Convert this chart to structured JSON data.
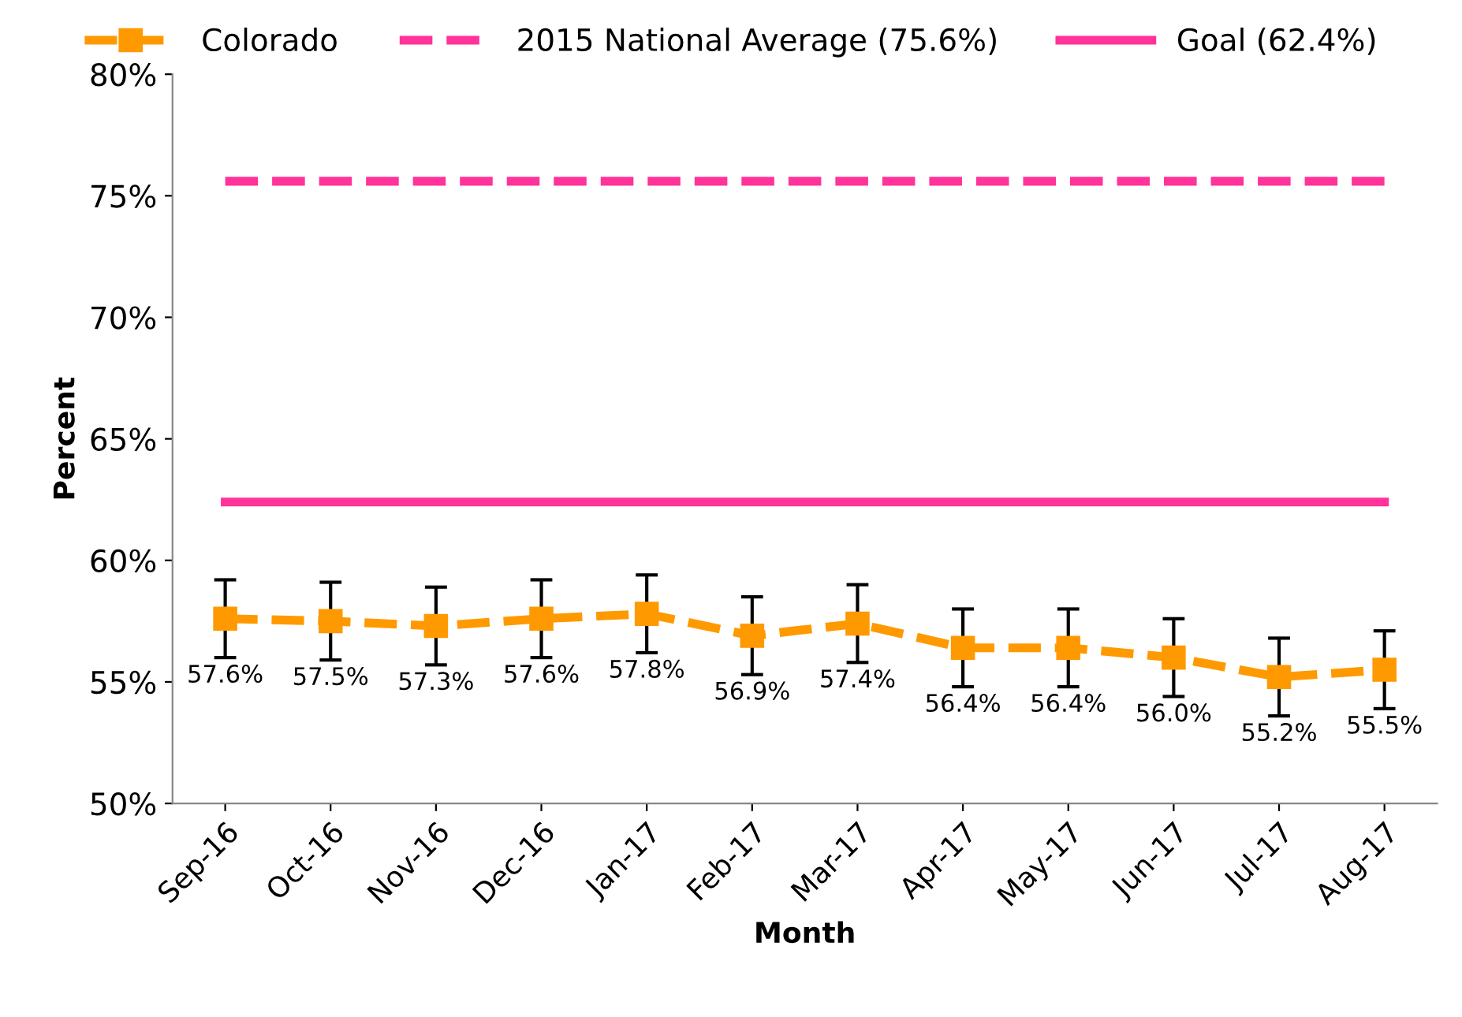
{
  "chart_data": {
    "type": "line",
    "xlabel": "Month",
    "ylabel": "Percent",
    "categories": [
      "Sep-16",
      "Oct-16",
      "Nov-16",
      "Dec-16",
      "Jan-17",
      "Feb-17",
      "Mar-17",
      "Apr-17",
      "May-17",
      "Jun-17",
      "Jul-17",
      "Aug-17"
    ],
    "series": [
      {
        "name": "Colorado",
        "color": "#ff9900",
        "marker": "square",
        "line_style": "dashed",
        "values": [
          57.6,
          57.5,
          57.3,
          57.6,
          57.8,
          56.9,
          57.4,
          56.4,
          56.4,
          56.0,
          55.2,
          55.5
        ],
        "errors": [
          1.6,
          1.6,
          1.6,
          1.6,
          1.6,
          1.6,
          1.6,
          1.6,
          1.6,
          1.6,
          1.6,
          1.6
        ],
        "value_labels": [
          "57.6%",
          "57.5%",
          "57.3%",
          "57.6%",
          "57.8%",
          "56.9%",
          "57.4%",
          "56.4%",
          "56.4%",
          "56.0%",
          "55.2%",
          "55.5%"
        ]
      },
      {
        "name": "2015 National Average (75.6%)",
        "color": "#ff3399",
        "marker": "none",
        "line_style": "dashed",
        "values": [
          75.6,
          75.6,
          75.6,
          75.6,
          75.6,
          75.6,
          75.6,
          75.6,
          75.6,
          75.6,
          75.6,
          75.6
        ]
      },
      {
        "name": "Goal (62.4%)",
        "color": "#ff3399",
        "marker": "none",
        "line_style": "solid",
        "values": [
          62.4,
          62.4,
          62.4,
          62.4,
          62.4,
          62.4,
          62.4,
          62.4,
          62.4,
          62.4,
          62.4,
          62.4
        ]
      }
    ],
    "ylim": [
      50,
      80
    ],
    "yticks": [
      {
        "value": 50,
        "label": "50%"
      },
      {
        "value": 55,
        "label": "55%"
      },
      {
        "value": 60,
        "label": "60%"
      },
      {
        "value": 65,
        "label": "65%"
      },
      {
        "value": 70,
        "label": "70%"
      },
      {
        "value": 75,
        "label": "75%"
      },
      {
        "value": 80,
        "label": "80%"
      }
    ],
    "grid": false,
    "legend": "top"
  }
}
